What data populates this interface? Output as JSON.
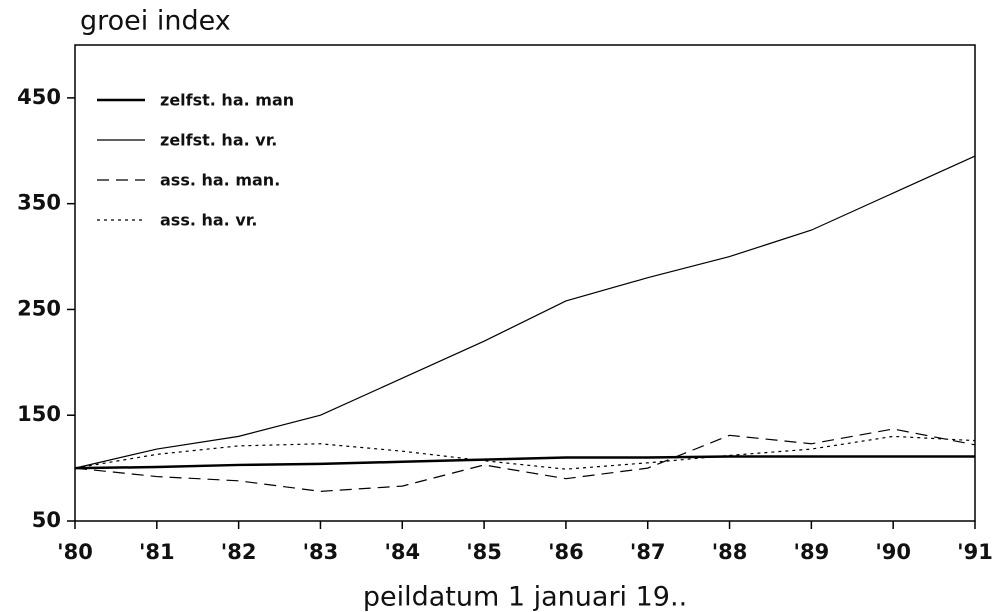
{
  "chart_data": {
    "type": "line",
    "title": "groei index",
    "x_label": "peildatum 1 januari 19..",
    "categories": [
      "'80",
      "'81",
      "'82",
      "'83",
      "'84",
      "'85",
      "'86",
      "'87",
      "'88",
      "'89",
      "'90",
      "'91"
    ],
    "series": [
      {
        "name": "zelfst. ha. man",
        "color": "#000000",
        "linestyle": "solid",
        "linewidth": 2.5,
        "values": [
          100,
          101,
          103,
          104,
          106,
          108,
          110,
          110,
          111,
          111,
          111,
          111
        ]
      },
      {
        "name": "zelfst. ha. vr.",
        "color": "#000000",
        "linestyle": "solid",
        "linewidth": 1.2,
        "values": [
          100,
          118,
          130,
          150,
          185,
          220,
          258,
          280,
          300,
          325,
          360,
          395
        ]
      },
      {
        "name": "ass. ha. man.",
        "color": "#000000",
        "linestyle": "dashed",
        "linewidth": 1.2,
        "values": [
          100,
          92,
          88,
          78,
          83,
          103,
          90,
          100,
          131,
          123,
          137,
          122
        ]
      },
      {
        "name": "ass. ha. vr.",
        "color": "#000000",
        "linestyle": "dotted",
        "linewidth": 1.2,
        "values": [
          100,
          113,
          121,
          123,
          116,
          107,
          99,
          105,
          112,
          118,
          130,
          126
        ]
      }
    ],
    "ylim": [
      50,
      500
    ],
    "yticks": [
      50,
      150,
      250,
      350,
      450
    ],
    "legend": "upper left",
    "grid": false
  }
}
